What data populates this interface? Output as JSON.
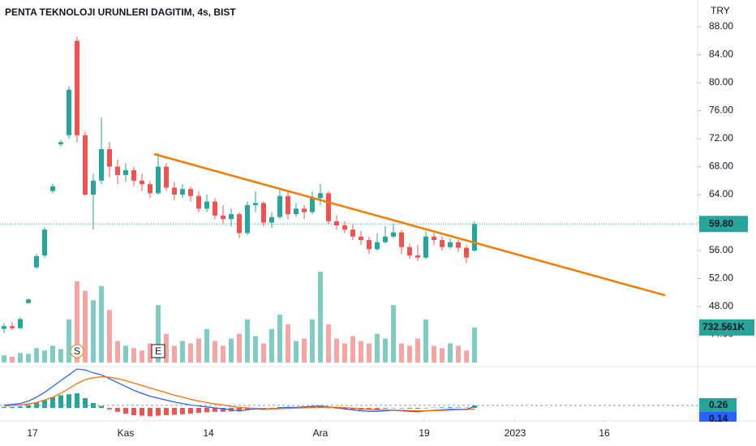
{
  "chart_data": {
    "type": "candlestick",
    "title": "PENTA TEKNOLOJI URUNLERI DAGITIM, 4s, BIST",
    "currency": "TRY",
    "up_color": "#26a69a",
    "down_color": "#ef5350",
    "volume_up_color": "#80cbc4",
    "volume_down_color": "#f5a5a3",
    "x": [
      0,
      1,
      2,
      3,
      4,
      5,
      6,
      7,
      8,
      9,
      10,
      11,
      12,
      13,
      14,
      15,
      16,
      17,
      18,
      19,
      20,
      21,
      22,
      23,
      24,
      25,
      26,
      27,
      28,
      29,
      30,
      31,
      32,
      33,
      34,
      35,
      36,
      37,
      38,
      39,
      40,
      41,
      42,
      43,
      44,
      45,
      46,
      47,
      48,
      49,
      50,
      51,
      52,
      53,
      54,
      55,
      56,
      57,
      58
    ],
    "open": [
      44.8,
      45.2,
      44.9,
      48.5,
      53.6,
      55.3,
      64.5,
      71.2,
      72.5,
      86.0,
      72.5,
      64.0,
      66.0,
      70.5,
      68.0,
      66.8,
      67.5,
      66.0,
      65.5,
      64.2,
      68.0,
      65.0,
      64.0,
      64.8,
      63.8,
      62.0,
      63.0,
      61.0,
      60.5,
      61.2,
      58.5,
      62.5,
      62.8,
      60.0,
      60.8,
      63.8,
      61.2,
      62.0,
      61.5,
      63.5,
      64.2,
      60.2,
      59.6,
      59.0,
      58.0,
      57.5,
      56.2,
      57.2,
      58.0,
      58.6,
      56.5,
      55.3,
      55.0,
      58.0,
      57.5,
      56.5,
      57.2,
      56.4,
      56.0
    ],
    "high": [
      45.6,
      45.8,
      46.5,
      49.2,
      55.5,
      59.3,
      65.6,
      71.8,
      79.5,
      86.6,
      73.0,
      67.0,
      75.0,
      71.5,
      69.0,
      68.5,
      68.0,
      67.0,
      66.0,
      70.0,
      68.5,
      65.8,
      65.5,
      65.2,
      64.5,
      64.0,
      63.5,
      62.5,
      62.0,
      61.5,
      63.0,
      64.5,
      63.0,
      61.5,
      65.0,
      64.5,
      62.8,
      62.5,
      64.5,
      65.5,
      64.5,
      61.0,
      60.2,
      59.8,
      58.8,
      58.0,
      58.5,
      59.5,
      59.8,
      59.0,
      57.0,
      56.8,
      58.8,
      58.5,
      58.0,
      57.8,
      57.5,
      56.8,
      60.2
    ],
    "low": [
      44.2,
      44.6,
      44.8,
      48.4,
      53.4,
      55.0,
      64.2,
      70.9,
      72.0,
      71.5,
      63.8,
      59.0,
      65.5,
      66.5,
      65.5,
      65.8,
      65.2,
      64.5,
      63.5,
      64.0,
      64.5,
      63.2,
      63.5,
      63.0,
      61.5,
      61.5,
      60.5,
      59.8,
      59.5,
      57.8,
      58.2,
      61.5,
      59.5,
      59.2,
      60.5,
      60.5,
      60.8,
      60.5,
      61.2,
      62.5,
      59.8,
      59.0,
      58.5,
      57.5,
      56.8,
      55.5,
      56.0,
      57.0,
      57.8,
      55.5,
      54.8,
      54.5,
      54.8,
      56.8,
      56.0,
      56.2,
      55.8,
      54.2,
      55.8
    ],
    "close": [
      45.2,
      44.9,
      46.2,
      49.0,
      55.2,
      59.0,
      65.2,
      71.5,
      79.0,
      72.5,
      64.0,
      66.0,
      70.5,
      68.0,
      66.8,
      67.5,
      66.0,
      65.5,
      64.2,
      68.0,
      65.0,
      64.0,
      64.8,
      63.8,
      62.0,
      63.0,
      61.0,
      60.5,
      61.2,
      58.5,
      62.5,
      62.8,
      60.0,
      60.8,
      63.8,
      61.2,
      62.0,
      61.5,
      63.5,
      64.2,
      60.2,
      59.6,
      59.0,
      58.0,
      57.5,
      56.2,
      57.2,
      58.0,
      58.6,
      56.5,
      55.3,
      55.0,
      58.0,
      57.5,
      56.5,
      57.2,
      56.4,
      55.0,
      59.8
    ],
    "last_price_label": "59.80",
    "volume": [
      150,
      120,
      200,
      180,
      300,
      250,
      350,
      280,
      900,
      1700,
      1500,
      1300,
      1600,
      1100,
      450,
      350,
      300,
      250,
      400,
      1200,
      600,
      350,
      450,
      400,
      500,
      700,
      450,
      350,
      500,
      600,
      900,
      550,
      400,
      700,
      1000,
      800,
      450,
      500,
      900,
      1900,
      800,
      500,
      400,
      550,
      450,
      400,
      600,
      500,
      1200,
      400,
      350,
      500,
      900,
      350,
      300,
      400,
      350,
      250,
      732.561
    ],
    "volume_label": "732.561K",
    "volume_lim": [
      0,
      1900
    ],
    "xlim": [
      -0.5,
      85.5
    ],
    "ylim": [
      39.65,
      91.83
    ],
    "yticks": [
      {
        "value": 44,
        "label": "44.00"
      },
      {
        "value": 48,
        "label": "48.00"
      },
      {
        "value": 52,
        "label": "52.00"
      },
      {
        "value": 56,
        "label": "56.00"
      },
      {
        "value": 60,
        "label": "60.00"
      },
      {
        "value": 64,
        "label": "64.00"
      },
      {
        "value": 68,
        "label": "68.00"
      },
      {
        "value": 72,
        "label": "72.00"
      },
      {
        "value": 76,
        "label": "76.00"
      },
      {
        "value": 80,
        "label": "80.00"
      },
      {
        "value": 84,
        "label": "84.00"
      },
      {
        "value": 88,
        "label": "88.00"
      }
    ],
    "xticks": [
      {
        "value": 3.5,
        "label": "17"
      },
      {
        "value": 15,
        "label": "Kas"
      },
      {
        "value": 25.2,
        "label": "14"
      },
      {
        "value": 39,
        "label": "Ara"
      },
      {
        "value": 51.8,
        "label": "19"
      },
      {
        "value": 63,
        "label": "2023"
      },
      {
        "value": 74,
        "label": "16"
      }
    ],
    "trendline": {
      "x": [
        18.5,
        81.5
      ],
      "y": [
        69.8,
        49.6
      ],
      "color": "#f57c00"
    },
    "events": [
      {
        "x": 9,
        "label": "S"
      },
      {
        "x": 19,
        "label": "E"
      }
    ],
    "macd": {
      "color": "#2962ff",
      "values": [
        0.3,
        0.35,
        0.45,
        0.7,
        1.1,
        1.6,
        2.2,
        2.8,
        3.4,
        4.0,
        3.9,
        3.6,
        3.4,
        3.0,
        2.6,
        2.2,
        1.8,
        1.5,
        1.2,
        1.0,
        0.8,
        0.6,
        0.45,
        0.3,
        0.2,
        0.1,
        0.0,
        -0.1,
        -0.2,
        -0.3,
        -0.2,
        -0.1,
        -0.15,
        -0.1,
        0.0,
        0.05,
        0.05,
        0.1,
        0.15,
        0.2,
        0.1,
        0.0,
        -0.1,
        -0.2,
        -0.3,
        -0.35,
        -0.35,
        -0.3,
        -0.25,
        -0.3,
        -0.35,
        -0.4,
        -0.3,
        -0.25,
        -0.2,
        -0.15,
        -0.15,
        -0.15,
        0.14
      ]
    },
    "signal": {
      "color": "#ff6d00",
      "values": [
        0.2,
        0.25,
        0.3,
        0.4,
        0.55,
        0.8,
        1.1,
        1.5,
        2.0,
        2.5,
        2.9,
        3.1,
        3.2,
        3.15,
        3.0,
        2.8,
        2.55,
        2.3,
        2.05,
        1.8,
        1.55,
        1.3,
        1.1,
        0.9,
        0.7,
        0.55,
        0.4,
        0.3,
        0.15,
        0.05,
        0.0,
        -0.05,
        -0.08,
        -0.1,
        -0.08,
        -0.05,
        -0.02,
        0.0,
        0.03,
        0.06,
        0.08,
        0.06,
        0.03,
        -0.02,
        -0.08,
        -0.14,
        -0.2,
        -0.22,
        -0.23,
        -0.25,
        -0.27,
        -0.3,
        -0.3,
        -0.28,
        -0.26,
        -0.23,
        -0.2,
        -0.18,
        -0.12
      ]
    },
    "histogram": [
      0.1,
      0.1,
      0.15,
      0.3,
      0.55,
      0.8,
      1.1,
      1.3,
      1.4,
      1.5,
      1.0,
      0.5,
      0.2,
      -0.15,
      -0.4,
      -0.6,
      -0.75,
      -0.8,
      -0.85,
      -0.8,
      -0.75,
      -0.7,
      -0.65,
      -0.6,
      -0.5,
      -0.45,
      -0.4,
      -0.4,
      -0.35,
      -0.35,
      -0.2,
      -0.05,
      -0.07,
      0.0,
      0.08,
      0.1,
      0.07,
      0.1,
      0.12,
      0.14,
      0.02,
      -0.06,
      -0.13,
      -0.18,
      -0.22,
      -0.21,
      -0.15,
      -0.08,
      -0.02,
      -0.05,
      -0.08,
      -0.1,
      0.0,
      0.03,
      0.06,
      0.08,
      0.05,
      0.03,
      0.26
    ],
    "macd_lim": [
      -1.25,
      4.5
    ],
    "macd_labels": [
      "0.26",
      "0.14"
    ]
  }
}
